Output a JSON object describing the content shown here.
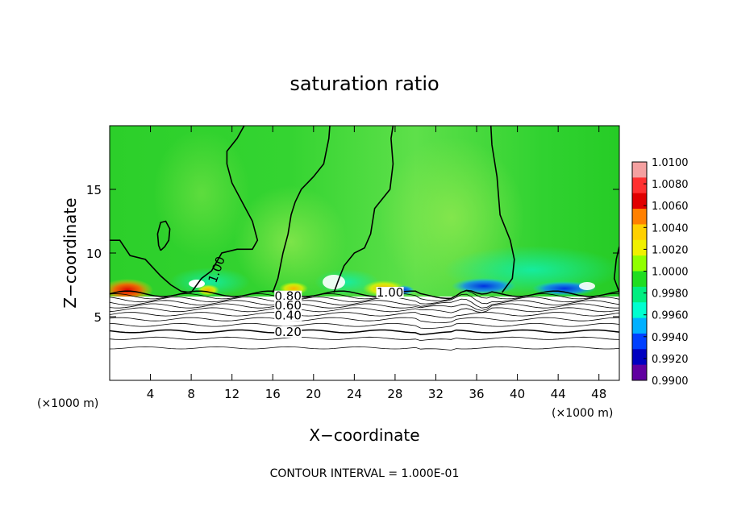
{
  "chart_data": {
    "type": "heatmap",
    "title": "saturation ratio",
    "xlabel": "X−coordinate",
    "ylabel": "Z−coordinate",
    "x_unit": "(×1000 m)",
    "z_unit": "(×1000 m)",
    "xlim": [
      0,
      50
    ],
    "ylim": [
      0,
      20
    ],
    "x_ticks": [
      4,
      8,
      12,
      16,
      20,
      24,
      28,
      32,
      36,
      40,
      44,
      48
    ],
    "y_ticks": [
      5,
      10,
      15
    ],
    "colorbar": {
      "min": 0.99,
      "max": 1.01,
      "ticks": [
        "1.0100",
        "1.0080",
        "1.0060",
        "1.0040",
        "1.0020",
        "1.0000",
        "0.9980",
        "0.9960",
        "0.9940",
        "0.9920",
        "0.9900"
      ],
      "colors": [
        "#f4a0a0",
        "#ff3030",
        "#e00000",
        "#ff8000",
        "#ffd000",
        "#f0f000",
        "#90ff00",
        "#20dd20",
        "#00ee80",
        "#00ffd0",
        "#00b0ff",
        "#0040ff",
        "#0000c0",
        "#6000a0"
      ]
    },
    "field_summary": {
      "upper_region_value": 1.0,
      "boundary_z": 6.8
    },
    "contour_interval": "CONTOUR INTERVAL = 1.000E-01",
    "contour_labels": [
      {
        "text": "1.00",
        "x": 27.5,
        "z": 6.9
      },
      {
        "text": "1.00",
        "x": 10.5,
        "z": 8.7,
        "rotate": -70
      },
      {
        "text": "0.80",
        "x": 17.5,
        "z": 6.6
      },
      {
        "text": "0.60",
        "x": 17.5,
        "z": 5.9
      },
      {
        "text": "0.40",
        "x": 17.5,
        "z": 5.1
      },
      {
        "text": "0.20",
        "x": 17.5,
        "z": 3.8
      }
    ],
    "contours": [
      [
        [
          0,
          11
        ],
        [
          1,
          11
        ],
        [
          2,
          9.8
        ],
        [
          3.5,
          9.5
        ],
        [
          5,
          8.2
        ],
        [
          6,
          7.5
        ],
        [
          7,
          7.0
        ],
        [
          8,
          6.9
        ]
      ],
      [
        [
          8,
          6.9
        ],
        [
          9,
          8.0
        ],
        [
          10,
          8.6
        ],
        [
          11,
          10.0
        ],
        [
          12.5,
          10.3
        ],
        [
          14,
          10.3
        ],
        [
          14.5,
          11
        ],
        [
          14,
          12.5
        ],
        [
          13,
          14
        ],
        [
          12,
          15.5
        ],
        [
          11.5,
          17
        ],
        [
          11.5,
          18
        ],
        [
          12.5,
          19
        ],
        [
          13.2,
          20
        ]
      ],
      [
        [
          16,
          6.9
        ],
        [
          16.5,
          8
        ],
        [
          17,
          10
        ],
        [
          17.5,
          11.5
        ],
        [
          17.8,
          13
        ],
        [
          18.2,
          14
        ],
        [
          18.8,
          15
        ],
        [
          20,
          16
        ],
        [
          21,
          17
        ],
        [
          21.5,
          19
        ],
        [
          21.6,
          20
        ]
      ],
      [
        [
          22,
          6.9
        ],
        [
          22.5,
          8
        ],
        [
          23,
          9
        ],
        [
          24,
          10
        ],
        [
          25,
          10.4
        ],
        [
          25.6,
          11.5
        ],
        [
          26,
          13.5
        ],
        [
          27.5,
          15
        ],
        [
          27.8,
          17
        ],
        [
          27.6,
          19
        ],
        [
          27.8,
          20
        ]
      ],
      [
        [
          38.5,
          6.9
        ],
        [
          39.5,
          8
        ],
        [
          39.7,
          9.5
        ],
        [
          39.3,
          11
        ],
        [
          38.3,
          13
        ],
        [
          38,
          16
        ],
        [
          37.5,
          18.5
        ],
        [
          37.4,
          20
        ]
      ],
      [
        [
          50,
          6.9
        ],
        [
          49.5,
          8
        ],
        [
          49.7,
          9.5
        ],
        [
          50,
          10.5
        ]
      ],
      [
        [
          5,
          10.2
        ],
        [
          5.4,
          10.5
        ],
        [
          5.8,
          11
        ],
        [
          5.9,
          11.9
        ],
        [
          5.5,
          12.5
        ],
        [
          5,
          12.4
        ],
        [
          4.7,
          11.5
        ],
        [
          4.8,
          10.6
        ],
        [
          5,
          10.2
        ]
      ]
    ],
    "stratified_lines": [
      {
        "z": 6.8,
        "w": 1.5
      },
      {
        "z": 6.6,
        "w": 0.8
      },
      {
        "z": 6.35,
        "w": 0.8
      },
      {
        "z": 6.1,
        "w": 0.8
      },
      {
        "z": 5.85,
        "w": 0.8
      },
      {
        "z": 5.55,
        "w": 0.8
      },
      {
        "z": 5.2,
        "w": 0.8
      },
      {
        "z": 4.8,
        "w": 0.8
      },
      {
        "z": 4.35,
        "w": 0.8
      },
      {
        "z": 3.85,
        "w": 1.5
      },
      {
        "z": 3.3,
        "w": 0.8
      },
      {
        "z": 2.55,
        "w": 0.8
      }
    ]
  }
}
